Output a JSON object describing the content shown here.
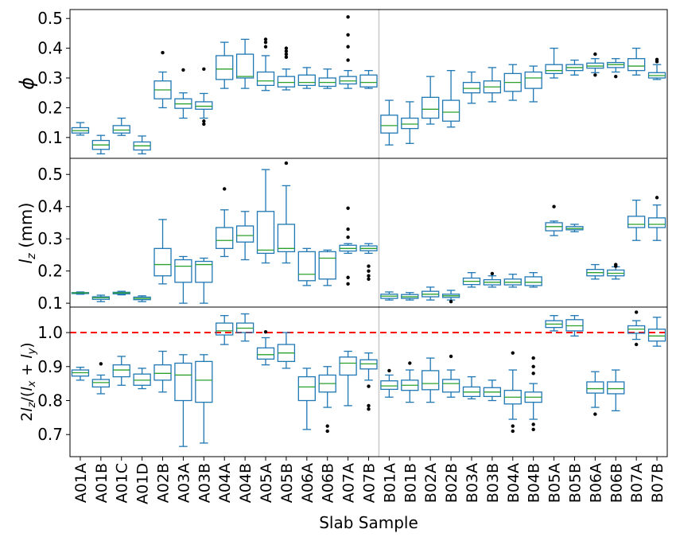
{
  "chart_data": {
    "type": "box",
    "xlabel": "Slab Sample",
    "categories": [
      "A01A",
      "A01B",
      "A01C",
      "A01D",
      "A02B",
      "A03A",
      "A03B",
      "A04A",
      "A04B",
      "A05A",
      "A05B",
      "A06A",
      "A06B",
      "A07A",
      "A07B",
      "B01A",
      "B01B",
      "B02A",
      "B02B",
      "B03A",
      "B03B",
      "B04A",
      "B04B",
      "B05A",
      "B05B",
      "B06A",
      "B06B",
      "B07A",
      "B07B"
    ],
    "panels": [
      {
        "name": "phi",
        "ylabel": "ϕ",
        "ylim": [
          0.03,
          0.53
        ],
        "yticks": [
          0.1,
          0.2,
          0.3,
          0.4,
          0.5
        ],
        "tick_labels": [
          "0.1",
          "0.2",
          "0.3",
          "0.4",
          "0.5"
        ],
        "boxes": [
          {
            "wl": 0.108,
            "q1": 0.115,
            "med": 0.123,
            "q3": 0.133,
            "wh": 0.15,
            "fl": []
          },
          {
            "wl": 0.045,
            "q1": 0.06,
            "med": 0.075,
            "q3": 0.09,
            "wh": 0.107,
            "fl": []
          },
          {
            "wl": 0.107,
            "q1": 0.115,
            "med": 0.125,
            "q3": 0.14,
            "wh": 0.165,
            "fl": []
          },
          {
            "wl": 0.045,
            "q1": 0.058,
            "med": 0.072,
            "q3": 0.085,
            "wh": 0.105,
            "fl": []
          },
          {
            "wl": 0.2,
            "q1": 0.23,
            "med": 0.26,
            "q3": 0.29,
            "wh": 0.32,
            "fl": [
              0.385
            ]
          },
          {
            "wl": 0.165,
            "q1": 0.198,
            "med": 0.213,
            "q3": 0.23,
            "wh": 0.25,
            "fl": [
              0.327
            ]
          },
          {
            "wl": 0.165,
            "q1": 0.195,
            "med": 0.205,
            "q3": 0.22,
            "wh": 0.248,
            "fl": [
              0.33,
              0.155,
              0.145
            ]
          },
          {
            "wl": 0.265,
            "q1": 0.295,
            "med": 0.33,
            "q3": 0.375,
            "wh": 0.42,
            "fl": []
          },
          {
            "wl": 0.265,
            "q1": 0.3,
            "med": 0.305,
            "q3": 0.38,
            "wh": 0.43,
            "fl": []
          },
          {
            "wl": 0.258,
            "q1": 0.275,
            "med": 0.29,
            "q3": 0.32,
            "wh": 0.375,
            "fl": [
              0.43,
              0.42,
              0.405
            ]
          },
          {
            "wl": 0.26,
            "q1": 0.27,
            "med": 0.285,
            "q3": 0.305,
            "wh": 0.33,
            "fl": [
              0.4,
              0.39,
              0.38,
              0.37
            ]
          },
          {
            "wl": 0.265,
            "q1": 0.275,
            "med": 0.285,
            "q3": 0.31,
            "wh": 0.335,
            "fl": []
          },
          {
            "wl": 0.265,
            "q1": 0.272,
            "med": 0.285,
            "q3": 0.3,
            "wh": 0.33,
            "fl": []
          },
          {
            "wl": 0.265,
            "q1": 0.28,
            "med": 0.29,
            "q3": 0.305,
            "wh": 0.325,
            "fl": [
              0.505,
              0.445,
              0.405,
              0.36
            ]
          },
          {
            "wl": 0.265,
            "q1": 0.27,
            "med": 0.285,
            "q3": 0.31,
            "wh": 0.325,
            "fl": []
          },
          {
            "wl": 0.075,
            "q1": 0.115,
            "med": 0.14,
            "q3": 0.175,
            "wh": 0.225,
            "fl": []
          },
          {
            "wl": 0.08,
            "q1": 0.13,
            "med": 0.145,
            "q3": 0.165,
            "wh": 0.22,
            "fl": []
          },
          {
            "wl": 0.145,
            "q1": 0.165,
            "med": 0.195,
            "q3": 0.235,
            "wh": 0.305,
            "fl": []
          },
          {
            "wl": 0.135,
            "q1": 0.155,
            "med": 0.185,
            "q3": 0.225,
            "wh": 0.325,
            "fl": []
          },
          {
            "wl": 0.215,
            "q1": 0.25,
            "med": 0.265,
            "q3": 0.285,
            "wh": 0.32,
            "fl": []
          },
          {
            "wl": 0.22,
            "q1": 0.25,
            "med": 0.27,
            "q3": 0.29,
            "wh": 0.335,
            "fl": []
          },
          {
            "wl": 0.225,
            "q1": 0.255,
            "med": 0.285,
            "q3": 0.315,
            "wh": 0.345,
            "fl": []
          },
          {
            "wl": 0.22,
            "q1": 0.265,
            "med": 0.3,
            "q3": 0.32,
            "wh": 0.34,
            "fl": []
          },
          {
            "wl": 0.3,
            "q1": 0.315,
            "med": 0.325,
            "q3": 0.345,
            "wh": 0.4,
            "fl": []
          },
          {
            "wl": 0.31,
            "q1": 0.325,
            "med": 0.335,
            "q3": 0.345,
            "wh": 0.36,
            "fl": []
          },
          {
            "wl": 0.318,
            "q1": 0.333,
            "med": 0.34,
            "q3": 0.35,
            "wh": 0.365,
            "fl": [
              0.38,
              0.31
            ]
          },
          {
            "wl": 0.32,
            "q1": 0.335,
            "med": 0.345,
            "q3": 0.352,
            "wh": 0.365,
            "fl": [
              0.305
            ]
          },
          {
            "wl": 0.31,
            "q1": 0.325,
            "med": 0.34,
            "q3": 0.365,
            "wh": 0.4,
            "fl": []
          },
          {
            "wl": 0.295,
            "q1": 0.3,
            "med": 0.308,
            "q3": 0.318,
            "wh": 0.345,
            "fl": [
              0.362,
              0.355
            ]
          }
        ]
      },
      {
        "name": "lz",
        "ylabel": "l_z (mm)",
        "ylim": [
          0.088,
          0.55
        ],
        "yticks": [
          0.1,
          0.2,
          0.3,
          0.4,
          0.5
        ],
        "tick_labels": [
          "0.1",
          "0.2",
          "0.3",
          "0.4",
          "0.5"
        ],
        "boxes": [
          {
            "wl": 0.128,
            "q1": 0.13,
            "med": 0.132,
            "q3": 0.133,
            "wh": 0.135,
            "fl": []
          },
          {
            "wl": 0.105,
            "q1": 0.112,
            "med": 0.117,
            "q3": 0.12,
            "wh": 0.125,
            "fl": []
          },
          {
            "wl": 0.126,
            "q1": 0.129,
            "med": 0.132,
            "q3": 0.134,
            "wh": 0.137,
            "fl": []
          },
          {
            "wl": 0.105,
            "q1": 0.111,
            "med": 0.115,
            "q3": 0.119,
            "wh": 0.123,
            "fl": []
          },
          {
            "wl": 0.16,
            "q1": 0.185,
            "med": 0.22,
            "q3": 0.27,
            "wh": 0.36,
            "fl": []
          },
          {
            "wl": 0.1,
            "q1": 0.165,
            "med": 0.215,
            "q3": 0.235,
            "wh": 0.245,
            "fl": []
          },
          {
            "wl": 0.1,
            "q1": 0.165,
            "med": 0.22,
            "q3": 0.23,
            "wh": 0.24,
            "fl": []
          },
          {
            "wl": 0.245,
            "q1": 0.27,
            "med": 0.295,
            "q3": 0.335,
            "wh": 0.39,
            "fl": [
              0.455
            ]
          },
          {
            "wl": 0.235,
            "q1": 0.29,
            "med": 0.31,
            "q3": 0.34,
            "wh": 0.385,
            "fl": []
          },
          {
            "wl": 0.225,
            "q1": 0.255,
            "med": 0.265,
            "q3": 0.385,
            "wh": 0.515,
            "fl": []
          },
          {
            "wl": 0.225,
            "q1": 0.26,
            "med": 0.27,
            "q3": 0.345,
            "wh": 0.465,
            "fl": [
              0.535
            ]
          },
          {
            "wl": 0.155,
            "q1": 0.17,
            "med": 0.19,
            "q3": 0.26,
            "wh": 0.27,
            "fl": []
          },
          {
            "wl": 0.155,
            "q1": 0.175,
            "med": 0.24,
            "q3": 0.26,
            "wh": 0.265,
            "fl": []
          },
          {
            "wl": 0.255,
            "q1": 0.262,
            "med": 0.27,
            "q3": 0.28,
            "wh": 0.285,
            "fl": [
              0.395,
              0.33,
              0.305,
              0.18,
              0.16
            ]
          },
          {
            "wl": 0.255,
            "q1": 0.263,
            "med": 0.27,
            "q3": 0.278,
            "wh": 0.285,
            "fl": [
              0.215,
              0.2,
              0.185,
              0.175
            ]
          },
          {
            "wl": 0.11,
            "q1": 0.115,
            "med": 0.122,
            "q3": 0.128,
            "wh": 0.135,
            "fl": []
          },
          {
            "wl": 0.11,
            "q1": 0.115,
            "med": 0.12,
            "q3": 0.127,
            "wh": 0.133,
            "fl": []
          },
          {
            "wl": 0.11,
            "q1": 0.12,
            "med": 0.128,
            "q3": 0.137,
            "wh": 0.15,
            "fl": []
          },
          {
            "wl": 0.11,
            "q1": 0.118,
            "med": 0.123,
            "q3": 0.128,
            "wh": 0.14,
            "fl": [
              0.105
            ]
          },
          {
            "wl": 0.15,
            "q1": 0.158,
            "med": 0.168,
            "q3": 0.178,
            "wh": 0.195,
            "fl": []
          },
          {
            "wl": 0.15,
            "q1": 0.157,
            "med": 0.165,
            "q3": 0.173,
            "wh": 0.185,
            "fl": [
              0.192
            ]
          },
          {
            "wl": 0.15,
            "q1": 0.157,
            "med": 0.165,
            "q3": 0.175,
            "wh": 0.19,
            "fl": []
          },
          {
            "wl": 0.15,
            "q1": 0.155,
            "med": 0.165,
            "q3": 0.182,
            "wh": 0.195,
            "fl": []
          },
          {
            "wl": 0.31,
            "q1": 0.325,
            "med": 0.338,
            "q3": 0.35,
            "wh": 0.355,
            "fl": [
              0.4
            ]
          },
          {
            "wl": 0.322,
            "q1": 0.328,
            "med": 0.332,
            "q3": 0.338,
            "wh": 0.345,
            "fl": []
          },
          {
            "wl": 0.175,
            "q1": 0.185,
            "med": 0.195,
            "q3": 0.205,
            "wh": 0.22,
            "fl": []
          },
          {
            "wl": 0.175,
            "q1": 0.185,
            "med": 0.193,
            "q3": 0.203,
            "wh": 0.213,
            "fl": [
              0.22,
              0.215
            ]
          },
          {
            "wl": 0.295,
            "q1": 0.335,
            "med": 0.345,
            "q3": 0.37,
            "wh": 0.42,
            "fl": []
          },
          {
            "wl": 0.295,
            "q1": 0.335,
            "med": 0.345,
            "q3": 0.365,
            "wh": 0.405,
            "fl": [
              0.428
            ]
          }
        ]
      },
      {
        "name": "ratio",
        "ylabel": "2l_z/(l_x + l_y)",
        "ylim": [
          0.635,
          1.075
        ],
        "yticks": [
          0.7,
          0.8,
          0.9,
          1.0
        ],
        "tick_labels": [
          "0.7",
          "0.8",
          "0.9",
          "1.0"
        ],
        "reference_line": 1.0,
        "boxes": [
          {
            "wl": 0.86,
            "q1": 0.872,
            "med": 0.882,
            "q3": 0.89,
            "wh": 0.898,
            "fl": []
          },
          {
            "wl": 0.82,
            "q1": 0.84,
            "med": 0.853,
            "q3": 0.862,
            "wh": 0.875,
            "fl": [
              0.908
            ]
          },
          {
            "wl": 0.845,
            "q1": 0.87,
            "med": 0.89,
            "q3": 0.905,
            "wh": 0.93,
            "fl": []
          },
          {
            "wl": 0.835,
            "q1": 0.845,
            "med": 0.86,
            "q3": 0.878,
            "wh": 0.895,
            "fl": []
          },
          {
            "wl": 0.825,
            "q1": 0.86,
            "med": 0.88,
            "q3": 0.905,
            "wh": 0.945,
            "fl": []
          },
          {
            "wl": 0.665,
            "q1": 0.8,
            "med": 0.875,
            "q3": 0.91,
            "wh": 0.935,
            "fl": []
          },
          {
            "wl": 0.675,
            "q1": 0.795,
            "med": 0.86,
            "q3": 0.915,
            "wh": 0.935,
            "fl": []
          },
          {
            "wl": 0.965,
            "q1": 0.993,
            "med": 1.005,
            "q3": 1.028,
            "wh": 1.05,
            "fl": []
          },
          {
            "wl": 0.975,
            "q1": 1.0,
            "med": 1.013,
            "q3": 1.028,
            "wh": 1.055,
            "fl": []
          },
          {
            "wl": 0.905,
            "q1": 0.922,
            "med": 0.935,
            "q3": 0.955,
            "wh": 0.985,
            "fl": [
              1.002
            ]
          },
          {
            "wl": 0.895,
            "q1": 0.915,
            "med": 0.94,
            "q3": 0.965,
            "wh": 1.0,
            "fl": []
          },
          {
            "wl": 0.715,
            "q1": 0.8,
            "med": 0.84,
            "q3": 0.87,
            "wh": 0.895,
            "fl": []
          },
          {
            "wl": 0.78,
            "q1": 0.825,
            "med": 0.85,
            "q3": 0.875,
            "wh": 0.9,
            "fl": [
              0.725,
              0.71
            ]
          },
          {
            "wl": 0.785,
            "q1": 0.875,
            "med": 0.91,
            "q3": 0.928,
            "wh": 0.945,
            "fl": []
          },
          {
            "wl": 0.86,
            "q1": 0.893,
            "med": 0.908,
            "q3": 0.92,
            "wh": 0.94,
            "fl": [
              0.842,
              0.785,
              0.775
            ]
          },
          {
            "wl": 0.81,
            "q1": 0.833,
            "med": 0.843,
            "q3": 0.858,
            "wh": 0.875,
            "fl": [
              0.888
            ]
          },
          {
            "wl": 0.795,
            "q1": 0.83,
            "med": 0.845,
            "q3": 0.86,
            "wh": 0.89,
            "fl": [
              0.91
            ]
          },
          {
            "wl": 0.795,
            "q1": 0.832,
            "med": 0.85,
            "q3": 0.888,
            "wh": 0.925,
            "fl": []
          },
          {
            "wl": 0.81,
            "q1": 0.825,
            "med": 0.85,
            "q3": 0.862,
            "wh": 0.89,
            "fl": [
              0.93
            ]
          },
          {
            "wl": 0.805,
            "q1": 0.812,
            "med": 0.825,
            "q3": 0.84,
            "wh": 0.87,
            "fl": []
          },
          {
            "wl": 0.8,
            "q1": 0.812,
            "med": 0.825,
            "q3": 0.838,
            "wh": 0.86,
            "fl": []
          },
          {
            "wl": 0.745,
            "q1": 0.79,
            "med": 0.81,
            "q3": 0.83,
            "wh": 0.89,
            "fl": [
              0.94,
              0.725,
              0.71
            ]
          },
          {
            "wl": 0.745,
            "q1": 0.795,
            "med": 0.81,
            "q3": 0.825,
            "wh": 0.85,
            "fl": [
              0.925,
              0.9,
              0.88,
              0.73,
              0.715
            ]
          },
          {
            "wl": 1.005,
            "q1": 1.015,
            "med": 1.025,
            "q3": 1.035,
            "wh": 1.05,
            "fl": []
          },
          {
            "wl": 0.99,
            "q1": 1.005,
            "med": 1.02,
            "q3": 1.038,
            "wh": 1.05,
            "fl": []
          },
          {
            "wl": 0.78,
            "q1": 0.822,
            "med": 0.835,
            "q3": 0.855,
            "wh": 0.885,
            "fl": [
              0.76
            ]
          },
          {
            "wl": 0.77,
            "q1": 0.82,
            "med": 0.835,
            "q3": 0.855,
            "wh": 0.89,
            "fl": []
          },
          {
            "wl": 0.98,
            "q1": 0.998,
            "med": 1.01,
            "q3": 1.02,
            "wh": 1.035,
            "fl": [
              1.06,
              0.965
            ]
          },
          {
            "wl": 0.96,
            "q1": 0.975,
            "med": 0.99,
            "q3": 1.01,
            "wh": 1.045,
            "fl": []
          }
        ]
      }
    ],
    "colors": {
      "box": "#1f77b4",
      "median": "#2ca02c",
      "flier": "#000000",
      "reference_line": "#ff0000",
      "divider": "#c8c8c8"
    },
    "divider_between": [
      "A07B",
      "B01A"
    ],
    "grid": false
  }
}
